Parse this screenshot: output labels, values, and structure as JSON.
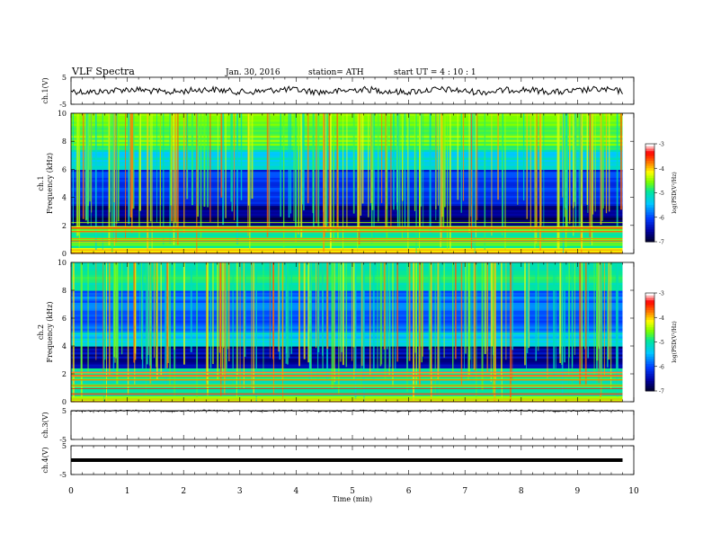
{
  "header": {
    "title": "VLF  Spectra",
    "date": "Jan. 30, 2016",
    "station": "station= ATH",
    "start": "start  UT  =   4  : 10 : 1"
  },
  "chart_data": [
    {
      "type": "line",
      "panel": "ch1-waveform",
      "ylabel": "ch.1(V)",
      "ylim": [
        -5,
        5
      ],
      "yticks": [
        "5",
        "-5"
      ],
      "xlim": [
        0,
        10
      ],
      "trace_level": 0.0,
      "x_extent": [
        0,
        9.8
      ]
    },
    {
      "type": "heatmap",
      "panel": "ch1-spectrogram",
      "ylabel": [
        "ch.1",
        "Frequency  (kHz)"
      ],
      "ylim": [
        0,
        10
      ],
      "yticks": [
        "0",
        "2",
        "4",
        "6",
        "8",
        "10"
      ],
      "xlim": [
        0,
        10
      ],
      "x_extent": [
        0,
        9.8
      ],
      "colorbar": {
        "label": "log(PSD(V²/Hz)",
        "range": [
          -7,
          -3
        ],
        "ticks": [
          "-3",
          "-4",
          "-5",
          "-6",
          "-7"
        ]
      }
    },
    {
      "type": "heatmap",
      "panel": "ch2-spectrogram",
      "ylabel": [
        "ch.2",
        "Frequency  (kHz)"
      ],
      "ylim": [
        0,
        10
      ],
      "yticks": [
        "0",
        "2",
        "4",
        "6",
        "8",
        "10"
      ],
      "xlim": [
        0,
        10
      ],
      "x_extent": [
        0,
        9.8
      ],
      "colorbar": {
        "label": "log(PSD(V²/Hz)",
        "range": [
          -7,
          -3
        ],
        "ticks": [
          "-3",
          "-4",
          "-5",
          "-6",
          "-7"
        ]
      }
    },
    {
      "type": "line",
      "panel": "ch3-waveform",
      "ylabel": "ch.3(V)",
      "ylim": [
        -5,
        5
      ],
      "yticks": [
        "5",
        "-5"
      ],
      "xlim": [
        0,
        10
      ],
      "trace_level": 5.0,
      "x_extent": [
        0,
        9.8
      ]
    },
    {
      "type": "line",
      "panel": "ch4-waveform",
      "ylabel": "ch.4(V)",
      "ylim": [
        -5,
        5
      ],
      "yticks": [
        "5",
        "-5"
      ],
      "xlim": [
        0,
        10
      ],
      "trace_level": 0.0,
      "x_extent": [
        0,
        9.8
      ]
    }
  ],
  "xaxis": {
    "label": "Time  (min)",
    "ticks": [
      "0",
      "1",
      "2",
      "3",
      "4",
      "5",
      "6",
      "7",
      "8",
      "9",
      "10"
    ]
  }
}
